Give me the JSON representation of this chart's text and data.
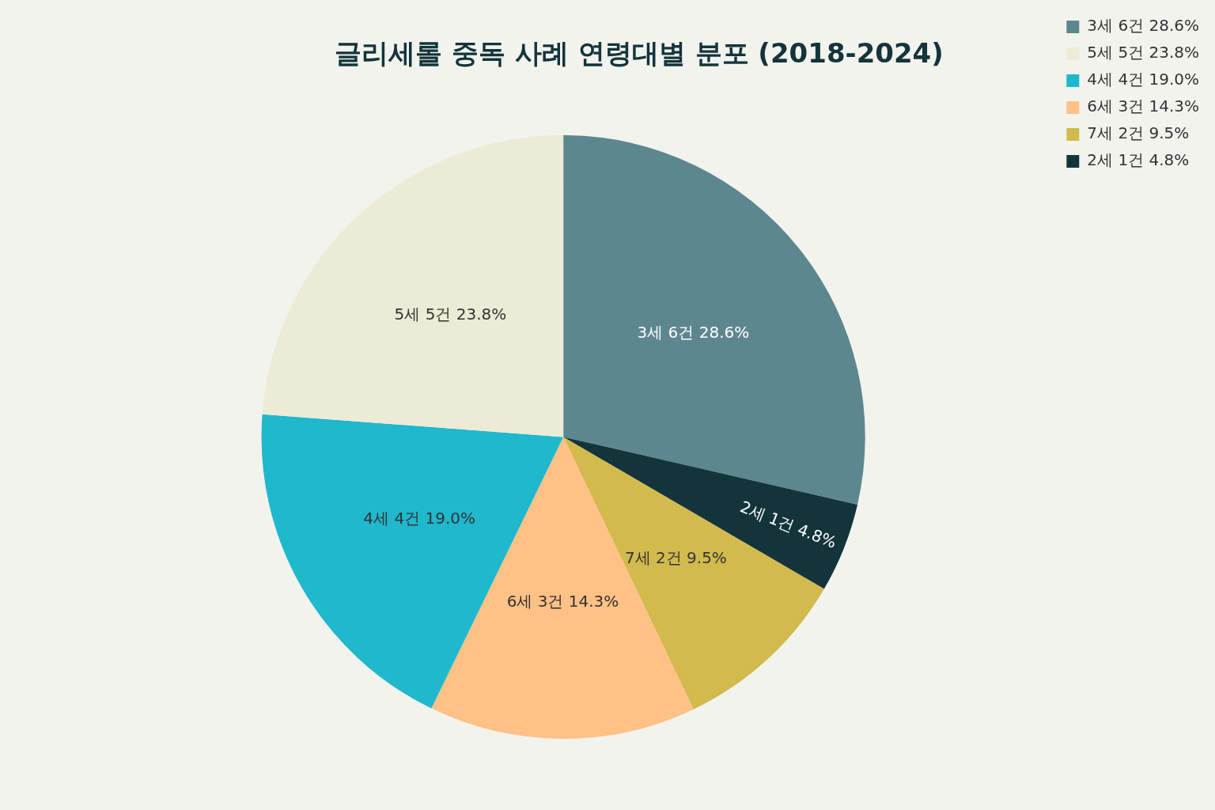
{
  "chart_data": {
    "type": "pie",
    "title": "글리세롤 중독 사례 연령대별 분포 (2018-2024)",
    "categories": [
      "3세 6건 28.6%",
      "2세 1건 4.8%",
      "7세 2건 9.5%",
      "6세 3건 14.3%",
      "4세 4건 19.0%",
      "5세 5건 23.8%"
    ],
    "values": [
      28.6,
      4.8,
      9.5,
      14.3,
      19.0,
      23.8
    ],
    "colors": [
      "#5d878f",
      "#13343b",
      "#d2ba4c",
      "#ffc185",
      "#1fb8cd",
      "#ecebd5"
    ],
    "legend": "top right"
  }
}
